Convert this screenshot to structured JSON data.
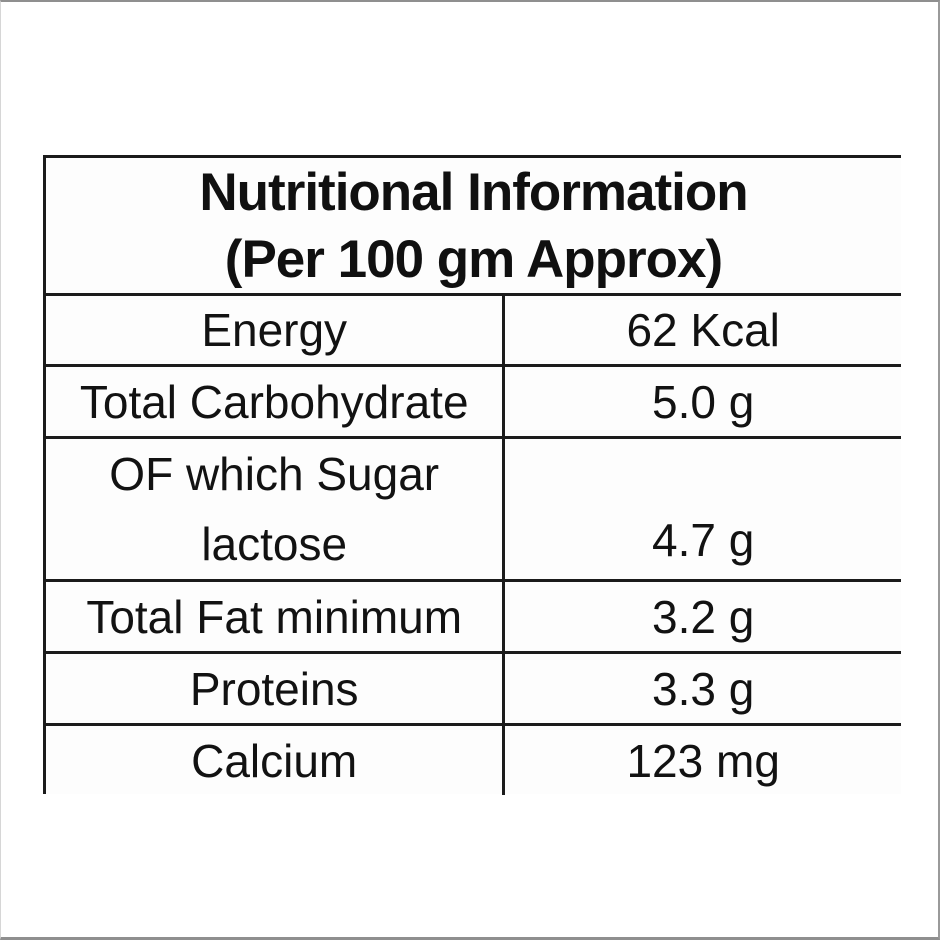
{
  "header": {
    "title": "Nutritional Information",
    "subtitle": "(Per 100 gm Approx)"
  },
  "rows": [
    {
      "label": "Energy",
      "value": "62 Kcal"
    },
    {
      "label": "Total Carbohydrate",
      "value": "5.0 g"
    },
    {
      "label": "OF which Sugar",
      "label_line2": "lactose",
      "value": "4.7 g"
    },
    {
      "label": "Total Fat minimum",
      "value": "3.2 g"
    },
    {
      "label": "Proteins",
      "value": "3.3 g"
    },
    {
      "label": "Calcium",
      "value": "123 mg"
    }
  ],
  "colors": {
    "table_line": "#1b1b1b",
    "text": "#121212",
    "background": "#ffffff",
    "photo_edge": "#8f8f8f"
  }
}
